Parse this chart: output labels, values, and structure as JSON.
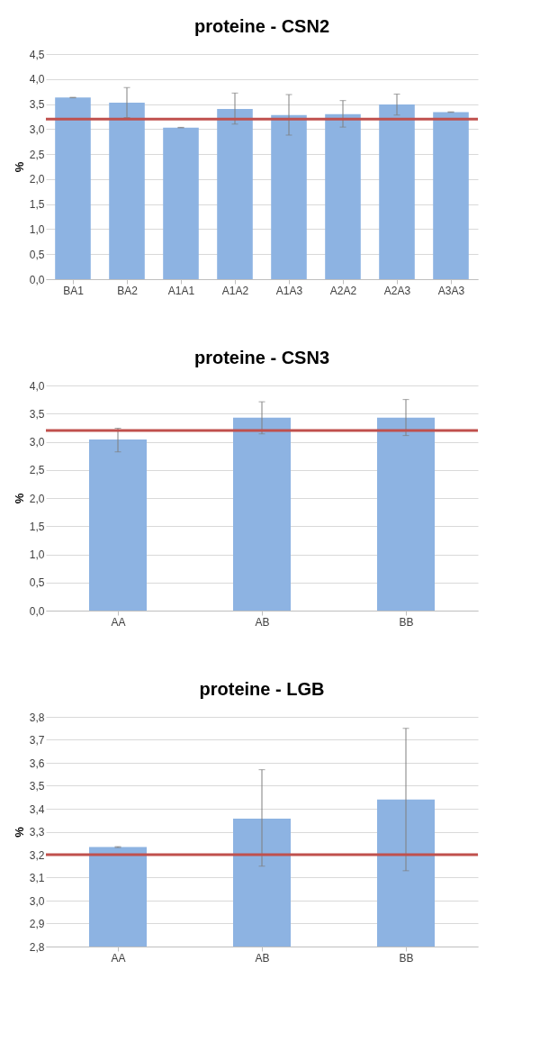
{
  "chart_data": [
    {
      "type": "bar",
      "title": "proteine - CSN2",
      "ylabel": "%",
      "categories": [
        "BA1",
        "BA2",
        "A1A1",
        "A1A2",
        "A1A3",
        "A2A2",
        "A2A3",
        "A3A3"
      ],
      "series": [
        {
          "color": "#8db3e2",
          "values": [
            3.63,
            3.53,
            3.03,
            3.4,
            3.28,
            3.3,
            3.49,
            3.34
          ],
          "errors": [
            0.005,
            [
              3.23,
              3.83
            ],
            0.005,
            [
              3.1,
              3.72
            ],
            [
              2.88,
              3.69
            ],
            [
              3.04,
              3.57
            ],
            [
              3.28,
              3.7
            ],
            0.005
          ]
        }
      ],
      "ylim": [
        0,
        4.5
      ],
      "yticks": [
        {
          "value": 0,
          "label": "0,0"
        },
        {
          "value": 0.5,
          "label": "0,5"
        },
        {
          "value": 1,
          "label": "1,0"
        },
        {
          "value": 1.5,
          "label": "1,5"
        },
        {
          "value": 2,
          "label": "2,0"
        },
        {
          "value": 2.5,
          "label": "2,5"
        },
        {
          "value": 3,
          "label": "3,0"
        },
        {
          "value": 3.5,
          "label": "3,5"
        },
        {
          "value": 4,
          "label": "4,0"
        },
        {
          "value": 4.5,
          "label": "4,5"
        }
      ],
      "ref_lines": [
        {
          "axis": "y",
          "value": 3.2,
          "color": "#c0504d"
        }
      ],
      "grid": "y"
    },
    {
      "type": "bar",
      "title": "proteine - CSN3",
      "ylabel": "%",
      "categories": [
        "AA",
        "AB",
        "BB"
      ],
      "series": [
        {
          "color": "#8db3e2",
          "values": [
            3.04,
            3.43,
            3.43
          ],
          "errors": [
            [
              2.82,
              3.24
            ],
            [
              3.14,
              3.71
            ],
            [
              3.11,
              3.75
            ]
          ]
        }
      ],
      "ylim": [
        0,
        4
      ],
      "yticks": [
        {
          "value": 0,
          "label": "0,0"
        },
        {
          "value": 0.5,
          "label": "0,5"
        },
        {
          "value": 1,
          "label": "1,0"
        },
        {
          "value": 1.5,
          "label": "1,5"
        },
        {
          "value": 2,
          "label": "2,0"
        },
        {
          "value": 2.5,
          "label": "2,5"
        },
        {
          "value": 3,
          "label": "3,0"
        },
        {
          "value": 3.5,
          "label": "3,5"
        },
        {
          "value": 4,
          "label": "4,0"
        }
      ],
      "ref_lines": [
        {
          "axis": "y",
          "value": 3.2,
          "color": "#c0504d"
        }
      ],
      "grid": "y"
    },
    {
      "type": "bar",
      "title": "proteine - LGB",
      "ylabel": "%",
      "categories": [
        "AA",
        "AB",
        "BB"
      ],
      "series": [
        {
          "color": "#8db3e2",
          "values": [
            3.233,
            3.357,
            3.44
          ],
          "errors": [
            0.002,
            [
              3.15,
              3.57
            ],
            [
              3.13,
              3.75
            ]
          ]
        }
      ],
      "ylim": [
        2.8,
        3.8
      ],
      "yticks": [
        {
          "value": 2.8,
          "label": "2,8"
        },
        {
          "value": 2.9,
          "label": "2,9"
        },
        {
          "value": 3.0,
          "label": "3,0"
        },
        {
          "value": 3.1,
          "label": "3,1"
        },
        {
          "value": 3.2,
          "label": "3,2"
        },
        {
          "value": 3.3,
          "label": "3,3"
        },
        {
          "value": 3.4,
          "label": "3,4"
        },
        {
          "value": 3.5,
          "label": "3,5"
        },
        {
          "value": 3.6,
          "label": "3,6"
        },
        {
          "value": 3.7,
          "label": "3,7"
        },
        {
          "value": 3.8,
          "label": "3,8"
        }
      ],
      "ref_lines": [
        {
          "axis": "y",
          "value": 3.2,
          "color": "#c0504d"
        }
      ],
      "grid": "y"
    }
  ]
}
